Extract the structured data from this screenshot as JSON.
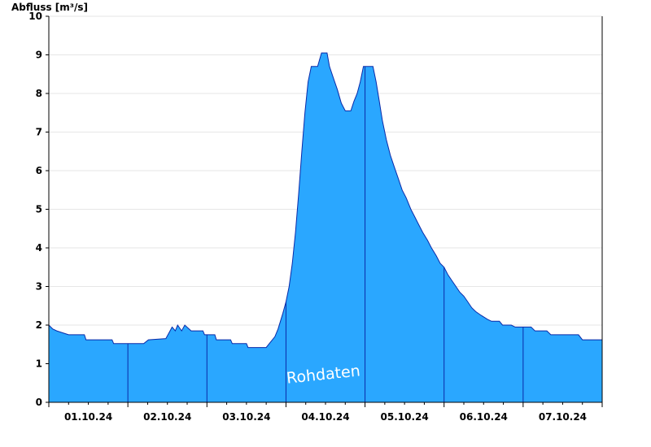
{
  "chart_data": {
    "type": "area",
    "ylabel": "Abfluss [m³/s]",
    "ylim": [
      0,
      10
    ],
    "yticks": [
      "0",
      "1",
      "2",
      "3",
      "4",
      "5",
      "6",
      "7",
      "8",
      "9",
      "10"
    ],
    "xlim_days": [
      0,
      7
    ],
    "xticks": [
      "01.10.24",
      "02.10.24",
      "03.10.24",
      "04.10.24",
      "05.10.24",
      "06.10.24",
      "07.10.24"
    ],
    "watermark": "Rohdaten",
    "grid": true,
    "fill_color": "#2aa7ff",
    "line_color": "#0a2aa8",
    "series": [
      {
        "values": [
          [
            0.0,
            2.0
          ],
          [
            0.05,
            1.9
          ],
          [
            0.1,
            1.85
          ],
          [
            0.25,
            1.75
          ],
          [
            0.45,
            1.75
          ],
          [
            0.47,
            1.62
          ],
          [
            0.8,
            1.62
          ],
          [
            0.82,
            1.52
          ],
          [
            1.0,
            1.52
          ],
          [
            1.2,
            1.52
          ],
          [
            1.26,
            1.62
          ],
          [
            1.48,
            1.65
          ],
          [
            1.52,
            1.8
          ],
          [
            1.56,
            1.95
          ],
          [
            1.6,
            1.85
          ],
          [
            1.63,
            2.0
          ],
          [
            1.68,
            1.85
          ],
          [
            1.72,
            2.0
          ],
          [
            1.8,
            1.85
          ],
          [
            1.95,
            1.85
          ],
          [
            1.97,
            1.75
          ],
          [
            2.1,
            1.75
          ],
          [
            2.12,
            1.62
          ],
          [
            2.3,
            1.62
          ],
          [
            2.32,
            1.52
          ],
          [
            2.5,
            1.52
          ],
          [
            2.52,
            1.42
          ],
          [
            2.75,
            1.42
          ],
          [
            2.8,
            1.55
          ],
          [
            2.86,
            1.7
          ],
          [
            2.9,
            1.9
          ],
          [
            2.93,
            2.1
          ],
          [
            2.96,
            2.3
          ],
          [
            3.0,
            2.6
          ],
          [
            3.04,
            3.0
          ],
          [
            3.08,
            3.6
          ],
          [
            3.12,
            4.4
          ],
          [
            3.16,
            5.4
          ],
          [
            3.2,
            6.5
          ],
          [
            3.24,
            7.5
          ],
          [
            3.28,
            8.3
          ],
          [
            3.32,
            8.7
          ],
          [
            3.4,
            8.7
          ],
          [
            3.45,
            9.05
          ],
          [
            3.52,
            9.05
          ],
          [
            3.55,
            8.7
          ],
          [
            3.6,
            8.4
          ],
          [
            3.65,
            8.1
          ],
          [
            3.7,
            7.75
          ],
          [
            3.75,
            7.55
          ],
          [
            3.82,
            7.55
          ],
          [
            3.86,
            7.8
          ],
          [
            3.9,
            8.0
          ],
          [
            3.94,
            8.3
          ],
          [
            3.98,
            8.7
          ],
          [
            4.0,
            8.7
          ],
          [
            4.1,
            8.7
          ],
          [
            4.14,
            8.3
          ],
          [
            4.18,
            7.8
          ],
          [
            4.22,
            7.3
          ],
          [
            4.27,
            6.8
          ],
          [
            4.32,
            6.4
          ],
          [
            4.37,
            6.1
          ],
          [
            4.42,
            5.8
          ],
          [
            4.47,
            5.5
          ],
          [
            4.52,
            5.3
          ],
          [
            4.58,
            5.0
          ],
          [
            4.63,
            4.8
          ],
          [
            4.68,
            4.6
          ],
          [
            4.73,
            4.4
          ],
          [
            4.79,
            4.2
          ],
          [
            4.84,
            4.0
          ],
          [
            4.9,
            3.8
          ],
          [
            4.95,
            3.6
          ],
          [
            5.0,
            3.5
          ],
          [
            5.05,
            3.3
          ],
          [
            5.1,
            3.15
          ],
          [
            5.15,
            3.0
          ],
          [
            5.2,
            2.85
          ],
          [
            5.25,
            2.75
          ],
          [
            5.3,
            2.6
          ],
          [
            5.35,
            2.45
          ],
          [
            5.4,
            2.35
          ],
          [
            5.47,
            2.25
          ],
          [
            5.55,
            2.15
          ],
          [
            5.6,
            2.1
          ],
          [
            5.7,
            2.1
          ],
          [
            5.74,
            2.0
          ],
          [
            5.85,
            2.0
          ],
          [
            5.9,
            1.95
          ],
          [
            6.0,
            1.95
          ],
          [
            6.1,
            1.95
          ],
          [
            6.15,
            1.85
          ],
          [
            6.3,
            1.85
          ],
          [
            6.35,
            1.75
          ],
          [
            6.5,
            1.75
          ],
          [
            6.7,
            1.75
          ],
          [
            6.75,
            1.62
          ],
          [
            7.0,
            1.62
          ]
        ]
      }
    ]
  }
}
